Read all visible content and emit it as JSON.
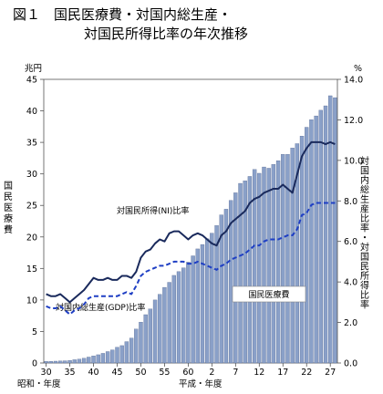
{
  "chart_data": {
    "type": "bar+line",
    "title_line1": "図１　国民医療費・対国内総生産・",
    "title_line2": "対国民所得比率の年次推移",
    "left_unit": "兆円",
    "right_unit": "%",
    "left_axis_label": "国民医療費",
    "right_axis_label": "対国内総生産比率・対国民所得比率",
    "xlabel_showa": "昭和・年度",
    "xlabel_heisei": "平成・年度",
    "x_tick_labels": [
      "30",
      "35",
      "40",
      "45",
      "50",
      "55",
      "60",
      "2",
      "7",
      "12",
      "17",
      "22",
      "27"
    ],
    "x_tick_index": [
      0,
      5,
      10,
      15,
      20,
      25,
      30,
      35,
      40,
      45,
      50,
      55,
      60
    ],
    "left_ticks": [
      0,
      5,
      10,
      15,
      20,
      25,
      30,
      35,
      40,
      45
    ],
    "right_ticks": [
      "0.0",
      "2.0",
      "4.0",
      "6.0",
      "8.0",
      "10.0",
      "12.0",
      "14.0"
    ],
    "ylim_left": [
      0,
      45
    ],
    "ylim_right": [
      0,
      14
    ],
    "categories": [
      "S30",
      "S31",
      "S32",
      "S33",
      "S34",
      "S35",
      "S36",
      "S37",
      "S38",
      "S39",
      "S40",
      "S41",
      "S42",
      "S43",
      "S44",
      "S45",
      "S46",
      "S47",
      "S48",
      "S49",
      "S50",
      "S51",
      "S52",
      "S53",
      "S54",
      "S55",
      "S56",
      "S57",
      "S58",
      "S59",
      "S60",
      "S61",
      "S62",
      "S63",
      "H1",
      "H2",
      "H3",
      "H4",
      "H5",
      "H6",
      "H7",
      "H8",
      "H9",
      "H10",
      "H11",
      "H12",
      "H13",
      "H14",
      "H15",
      "H16",
      "H17",
      "H18",
      "H19",
      "H20",
      "H21",
      "H22",
      "H23",
      "H24",
      "H25",
      "H26",
      "H27",
      "H28"
    ],
    "series": [
      {
        "name": "国民医療費",
        "kind": "bar",
        "axis": "left",
        "values": [
          0.24,
          0.26,
          0.29,
          0.32,
          0.35,
          0.41,
          0.52,
          0.61,
          0.75,
          0.94,
          1.12,
          1.31,
          1.53,
          1.81,
          2.08,
          2.5,
          2.76,
          3.39,
          3.96,
          5.38,
          6.48,
          7.67,
          8.57,
          10.0,
          10.9,
          12.0,
          12.8,
          13.9,
          14.5,
          15.1,
          16.0,
          17.0,
          18.1,
          18.8,
          19.7,
          20.6,
          21.8,
          23.5,
          24.4,
          25.8,
          27.0,
          28.5,
          28.9,
          29.6,
          30.7,
          30.1,
          31.1,
          30.9,
          31.5,
          32.1,
          33.1,
          33.1,
          34.1,
          34.8,
          36.0,
          37.4,
          38.6,
          39.2,
          40.1,
          40.8,
          42.4,
          42.1
        ],
        "color": "#8aa0c8"
      },
      {
        "name": "対国民所得(NI)比率",
        "kind": "line",
        "axis": "right",
        "values": [
          3.4,
          3.3,
          3.3,
          3.4,
          3.2,
          3.0,
          3.2,
          3.4,
          3.6,
          3.9,
          4.2,
          4.1,
          4.1,
          4.2,
          4.1,
          4.1,
          4.3,
          4.3,
          4.2,
          4.5,
          5.2,
          5.5,
          5.6,
          5.9,
          6.1,
          6.0,
          6.4,
          6.5,
          6.5,
          6.3,
          6.1,
          6.3,
          6.4,
          6.3,
          6.1,
          5.9,
          5.8,
          6.3,
          6.5,
          6.9,
          7.1,
          7.3,
          7.5,
          7.9,
          8.1,
          8.2,
          8.4,
          8.5,
          8.6,
          8.6,
          8.8,
          8.6,
          8.4,
          9.3,
          10.2,
          10.6,
          10.9,
          10.9,
          10.9,
          10.8,
          10.9,
          10.8
        ],
        "color": "#1a2a5c"
      },
      {
        "name": "対国内総生産(GDP)比率",
        "kind": "line",
        "axis": "right",
        "values": [
          2.8,
          2.7,
          2.7,
          2.8,
          2.6,
          2.4,
          2.6,
          2.7,
          2.9,
          3.2,
          3.3,
          3.3,
          3.3,
          3.3,
          3.3,
          3.3,
          3.4,
          3.5,
          3.4,
          3.8,
          4.3,
          4.5,
          4.6,
          4.7,
          4.8,
          4.8,
          4.9,
          5.0,
          5.0,
          5.0,
          4.9,
          4.9,
          5.0,
          4.9,
          4.8,
          4.7,
          4.6,
          4.8,
          4.9,
          5.1,
          5.2,
          5.3,
          5.4,
          5.6,
          5.8,
          5.8,
          6.0,
          6.1,
          6.1,
          6.1,
          6.2,
          6.3,
          6.3,
          6.6,
          7.3,
          7.4,
          7.8,
          7.9,
          7.9,
          7.9,
          7.9,
          7.9
        ],
        "color": "#1f3fc4"
      }
    ],
    "annotations": [
      "対国民所得(NI)比率",
      "対国内総生産(GDP)比率",
      "国民医療費"
    ]
  }
}
